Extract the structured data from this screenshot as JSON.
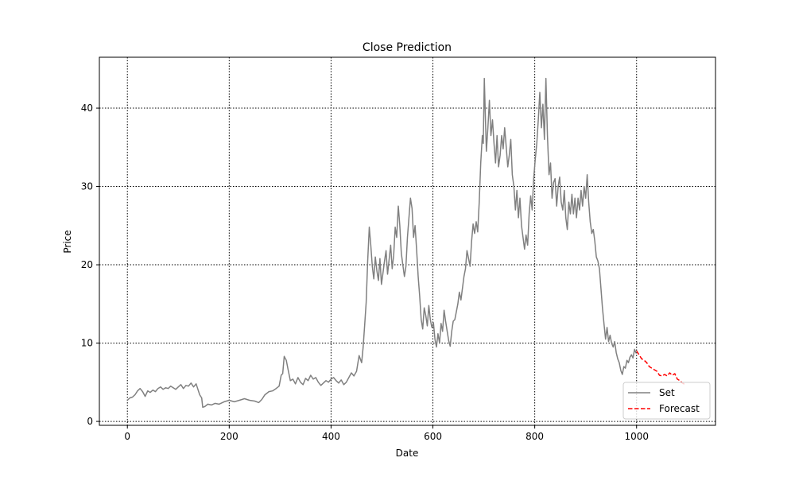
{
  "chart_data": {
    "type": "line",
    "title": "Close Prediction",
    "xlabel": "Date",
    "ylabel": "Price",
    "xlim": [
      -55,
      1155
    ],
    "ylim": [
      -0.5,
      46.5
    ],
    "xticks": [
      0,
      200,
      400,
      600,
      800,
      1000
    ],
    "yticks": [
      0,
      10,
      20,
      30,
      40
    ],
    "grid": true,
    "legend_position": "lower-right",
    "series": [
      {
        "name": "Set",
        "color": "#808080",
        "style": "solid",
        "points": [
          [
            0,
            2.7
          ],
          [
            5,
            3.0
          ],
          [
            10,
            3.1
          ],
          [
            15,
            3.4
          ],
          [
            20,
            3.9
          ],
          [
            25,
            4.2
          ],
          [
            30,
            3.8
          ],
          [
            35,
            3.2
          ],
          [
            40,
            3.9
          ],
          [
            45,
            3.7
          ],
          [
            50,
            4.0
          ],
          [
            55,
            3.8
          ],
          [
            60,
            4.2
          ],
          [
            65,
            4.4
          ],
          [
            70,
            4.1
          ],
          [
            75,
            4.3
          ],
          [
            80,
            4.2
          ],
          [
            85,
            4.5
          ],
          [
            90,
            4.3
          ],
          [
            95,
            4.1
          ],
          [
            100,
            4.4
          ],
          [
            105,
            4.7
          ],
          [
            110,
            4.2
          ],
          [
            115,
            4.6
          ],
          [
            120,
            4.5
          ],
          [
            125,
            4.9
          ],
          [
            130,
            4.4
          ],
          [
            135,
            4.8
          ],
          [
            138,
            4.2
          ],
          [
            142,
            3.4
          ],
          [
            146,
            3.0
          ],
          [
            148,
            1.8
          ],
          [
            152,
            1.9
          ],
          [
            158,
            2.2
          ],
          [
            165,
            2.1
          ],
          [
            172,
            2.3
          ],
          [
            180,
            2.2
          ],
          [
            190,
            2.5
          ],
          [
            200,
            2.7
          ],
          [
            210,
            2.5
          ],
          [
            220,
            2.7
          ],
          [
            230,
            2.9
          ],
          [
            240,
            2.7
          ],
          [
            250,
            2.6
          ],
          [
            258,
            2.4
          ],
          [
            264,
            2.8
          ],
          [
            270,
            3.4
          ],
          [
            278,
            3.8
          ],
          [
            285,
            3.9
          ],
          [
            292,
            4.2
          ],
          [
            298,
            4.5
          ],
          [
            302,
            5.9
          ],
          [
            305,
            6.1
          ],
          [
            308,
            8.3
          ],
          [
            312,
            7.8
          ],
          [
            316,
            6.5
          ],
          [
            320,
            5.2
          ],
          [
            325,
            5.4
          ],
          [
            330,
            4.8
          ],
          [
            335,
            5.6
          ],
          [
            340,
            5.0
          ],
          [
            345,
            4.7
          ],
          [
            350,
            5.5
          ],
          [
            355,
            5.2
          ],
          [
            360,
            5.9
          ],
          [
            365,
            5.4
          ],
          [
            370,
            5.6
          ],
          [
            375,
            5.0
          ],
          [
            380,
            4.6
          ],
          [
            385,
            4.9
          ],
          [
            390,
            5.2
          ],
          [
            395,
            5.0
          ],
          [
            400,
            5.4
          ],
          [
            405,
            5.6
          ],
          [
            410,
            5.2
          ],
          [
            415,
            4.9
          ],
          [
            420,
            5.3
          ],
          [
            425,
            4.7
          ],
          [
            430,
            5.0
          ],
          [
            435,
            5.6
          ],
          [
            440,
            6.2
          ],
          [
            445,
            5.8
          ],
          [
            450,
            6.4
          ],
          [
            455,
            8.4
          ],
          [
            460,
            7.5
          ],
          [
            463,
            9.5
          ],
          [
            466,
            12.3
          ],
          [
            469,
            15.2
          ],
          [
            472,
            20.5
          ],
          [
            475,
            24.8
          ],
          [
            478,
            22.5
          ],
          [
            481,
            19.8
          ],
          [
            484,
            18.2
          ],
          [
            487,
            21.0
          ],
          [
            490,
            19.2
          ],
          [
            493,
            18.0
          ],
          [
            496,
            20.8
          ],
          [
            499,
            17.5
          ],
          [
            502,
            19.0
          ],
          [
            505,
            20.5
          ],
          [
            508,
            21.8
          ],
          [
            511,
            18.8
          ],
          [
            514,
            20.6
          ],
          [
            517,
            22.5
          ],
          [
            520,
            19.5
          ],
          [
            523,
            21.2
          ],
          [
            526,
            24.8
          ],
          [
            529,
            23.5
          ],
          [
            532,
            27.5
          ],
          [
            535,
            25.0
          ],
          [
            538,
            21.5
          ],
          [
            541,
            20.0
          ],
          [
            544,
            18.5
          ],
          [
            547,
            19.8
          ],
          [
            550,
            23.5
          ],
          [
            553,
            26.0
          ],
          [
            556,
            28.5
          ],
          [
            559,
            27.2
          ],
          [
            562,
            23.5
          ],
          [
            565,
            25.0
          ],
          [
            568,
            22.0
          ],
          [
            571,
            18.5
          ],
          [
            574,
            16.0
          ],
          [
            577,
            13.0
          ],
          [
            580,
            11.8
          ],
          [
            583,
            14.5
          ],
          [
            586,
            13.5
          ],
          [
            589,
            12.2
          ],
          [
            592,
            14.8
          ],
          [
            595,
            13.0
          ],
          [
            598,
            12.0
          ],
          [
            601,
            12.6
          ],
          [
            604,
            10.5
          ],
          [
            607,
            9.5
          ],
          [
            610,
            11.2
          ],
          [
            613,
            10.0
          ],
          [
            616,
            12.5
          ],
          [
            619,
            11.5
          ],
          [
            622,
            14.2
          ],
          [
            625,
            12.8
          ],
          [
            628,
            11.5
          ],
          [
            631,
            10.3
          ],
          [
            634,
            9.6
          ],
          [
            637,
            11.5
          ],
          [
            640,
            12.8
          ],
          [
            643,
            13.0
          ],
          [
            646,
            14.0
          ],
          [
            649,
            15.0
          ],
          [
            652,
            16.5
          ],
          [
            655,
            15.5
          ],
          [
            658,
            17.0
          ],
          [
            661,
            18.5
          ],
          [
            664,
            19.5
          ],
          [
            667,
            21.8
          ],
          [
            670,
            20.8
          ],
          [
            673,
            19.8
          ],
          [
            676,
            23.0
          ],
          [
            679,
            25.2
          ],
          [
            682,
            24.0
          ],
          [
            685,
            25.5
          ],
          [
            688,
            24.2
          ],
          [
            691,
            28.0
          ],
          [
            694,
            33.0
          ],
          [
            697,
            36.5
          ],
          [
            699,
            35.5
          ],
          [
            701,
            43.8
          ],
          [
            703,
            39.0
          ],
          [
            705,
            34.5
          ],
          [
            708,
            37.5
          ],
          [
            711,
            41.0
          ],
          [
            714,
            36.5
          ],
          [
            717,
            38.5
          ],
          [
            720,
            35.5
          ],
          [
            723,
            33.0
          ],
          [
            726,
            36.5
          ],
          [
            729,
            32.5
          ],
          [
            732,
            34.0
          ],
          [
            735,
            36.5
          ],
          [
            738,
            34.8
          ],
          [
            741,
            37.5
          ],
          [
            744,
            35.0
          ],
          [
            747,
            32.5
          ],
          [
            750,
            34.0
          ],
          [
            753,
            36.0
          ],
          [
            756,
            31.5
          ],
          [
            759,
            30.0
          ],
          [
            762,
            27.0
          ],
          [
            765,
            29.5
          ],
          [
            768,
            26.0
          ],
          [
            771,
            28.5
          ],
          [
            774,
            25.0
          ],
          [
            777,
            23.5
          ],
          [
            780,
            22.0
          ],
          [
            783,
            23.8
          ],
          [
            786,
            22.5
          ],
          [
            789,
            26.5
          ],
          [
            792,
            28.8
          ],
          [
            795,
            27.0
          ],
          [
            798,
            31.0
          ],
          [
            801,
            33.5
          ],
          [
            804,
            35.5
          ],
          [
            807,
            38.5
          ],
          [
            810,
            42.0
          ],
          [
            813,
            37.5
          ],
          [
            816,
            40.5
          ],
          [
            819,
            36.0
          ],
          [
            822,
            43.8
          ],
          [
            825,
            36.5
          ],
          [
            828,
            31.5
          ],
          [
            831,
            33.0
          ],
          [
            834,
            28.5
          ],
          [
            837,
            30.5
          ],
          [
            840,
            31.0
          ],
          [
            843,
            27.5
          ],
          [
            846,
            30.0
          ],
          [
            849,
            31.2
          ],
          [
            852,
            28.0
          ],
          [
            855,
            27.0
          ],
          [
            858,
            29.5
          ],
          [
            861,
            26.0
          ],
          [
            864,
            24.5
          ],
          [
            867,
            28.0
          ],
          [
            870,
            26.5
          ],
          [
            873,
            29.0
          ],
          [
            876,
            26.5
          ],
          [
            879,
            28.5
          ],
          [
            882,
            26.0
          ],
          [
            885,
            28.5
          ],
          [
            888,
            27.0
          ],
          [
            891,
            29.5
          ],
          [
            894,
            27.5
          ],
          [
            897,
            30.0
          ],
          [
            900,
            28.5
          ],
          [
            903,
            31.5
          ],
          [
            906,
            28.0
          ],
          [
            909,
            25.5
          ],
          [
            912,
            24.0
          ],
          [
            915,
            24.5
          ],
          [
            918,
            23.0
          ],
          [
            921,
            21.0
          ],
          [
            924,
            20.5
          ],
          [
            927,
            19.5
          ],
          [
            930,
            17.0
          ],
          [
            933,
            14.5
          ],
          [
            936,
            12.5
          ],
          [
            939,
            10.5
          ],
          [
            942,
            12.0
          ],
          [
            945,
            10.2
          ],
          [
            948,
            11.0
          ],
          [
            951,
            10.0
          ],
          [
            954,
            9.5
          ],
          [
            957,
            10.2
          ],
          [
            960,
            8.8
          ],
          [
            963,
            8.0
          ],
          [
            966,
            7.5
          ],
          [
            969,
            6.5
          ],
          [
            972,
            6.0
          ],
          [
            975,
            7.0
          ],
          [
            978,
            6.8
          ],
          [
            981,
            7.8
          ],
          [
            984,
            7.5
          ],
          [
            987,
            8.2
          ],
          [
            990,
            8.5
          ],
          [
            993,
            8.1
          ],
          [
            996,
            9.2
          ],
          [
            999,
            8.7
          ]
        ]
      },
      {
        "name": "Forecast",
        "color": "#ff0000",
        "style": "dashed",
        "points": [
          [
            1000,
            9.0
          ],
          [
            1005,
            8.5
          ],
          [
            1010,
            8.0
          ],
          [
            1015,
            7.8
          ],
          [
            1020,
            7.5
          ],
          [
            1025,
            7.0
          ],
          [
            1030,
            6.8
          ],
          [
            1035,
            6.6
          ],
          [
            1040,
            6.4
          ],
          [
            1045,
            5.9
          ],
          [
            1050,
            5.8
          ],
          [
            1055,
            6.0
          ],
          [
            1060,
            5.8
          ],
          [
            1065,
            6.2
          ],
          [
            1070,
            5.9
          ],
          [
            1075,
            6.1
          ],
          [
            1080,
            5.4
          ],
          [
            1085,
            5.2
          ],
          [
            1090,
            4.9
          ],
          [
            1095,
            4.7
          ]
        ]
      }
    ]
  }
}
